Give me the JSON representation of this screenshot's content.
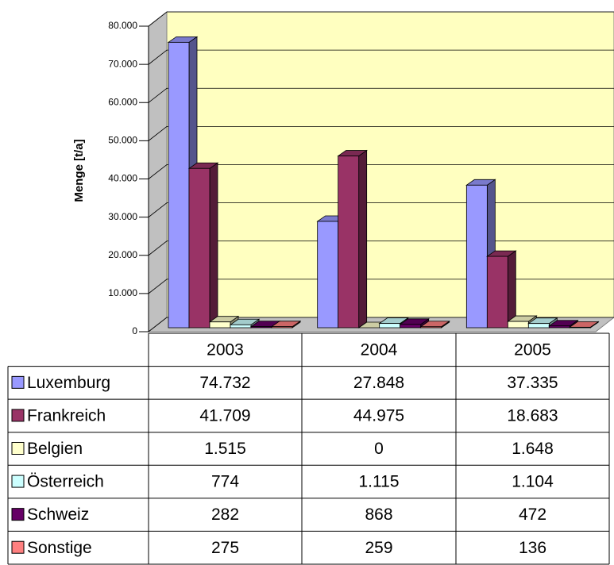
{
  "chart_data": {
    "type": "bar",
    "y_label": "Menge [t/a]",
    "categories": [
      "2003",
      "2004",
      "2005"
    ],
    "series": [
      {
        "name": "Luxemburg",
        "color": "#9999ff",
        "values": [
          74732,
          27848,
          37335
        ],
        "value_labels": [
          "74.732",
          "27.848",
          "37.335"
        ]
      },
      {
        "name": "Frankreich",
        "color": "#993366",
        "values": [
          41709,
          44975,
          18683
        ],
        "value_labels": [
          "41.709",
          "44.975",
          "18.683"
        ]
      },
      {
        "name": "Belgien",
        "color": "#ffffcc",
        "values": [
          1515,
          0,
          1648
        ],
        "value_labels": [
          "1.515",
          "0",
          "1.648"
        ]
      },
      {
        "name": "Österreich",
        "color": "#ccffff",
        "values": [
          774,
          1115,
          1104
        ],
        "value_labels": [
          "774",
          "1.115",
          "1.104"
        ]
      },
      {
        "name": "Schweiz",
        "color": "#660066",
        "values": [
          282,
          868,
          472
        ],
        "value_labels": [
          "282",
          "868",
          "472"
        ]
      },
      {
        "name": "Sonstige",
        "color": "#ff8080",
        "values": [
          275,
          259,
          136
        ],
        "value_labels": [
          "275",
          "259",
          "136"
        ]
      }
    ],
    "ylim": [
      0,
      80000
    ],
    "yticks": [
      0,
      {
        "value": 10000,
        "label": "10.000"
      },
      {
        "value": 20000,
        "label": "20.000"
      },
      {
        "value": 30000,
        "label": "30.000"
      },
      {
        "value": 40000,
        "label": "40.000"
      },
      {
        "value": 50000,
        "label": "50.000"
      },
      {
        "value": 60000,
        "label": "60.000"
      },
      {
        "value": 70000,
        "label": "70.000"
      },
      {
        "value": 80000,
        "label": "80.000"
      }
    ],
    "grid": true
  }
}
